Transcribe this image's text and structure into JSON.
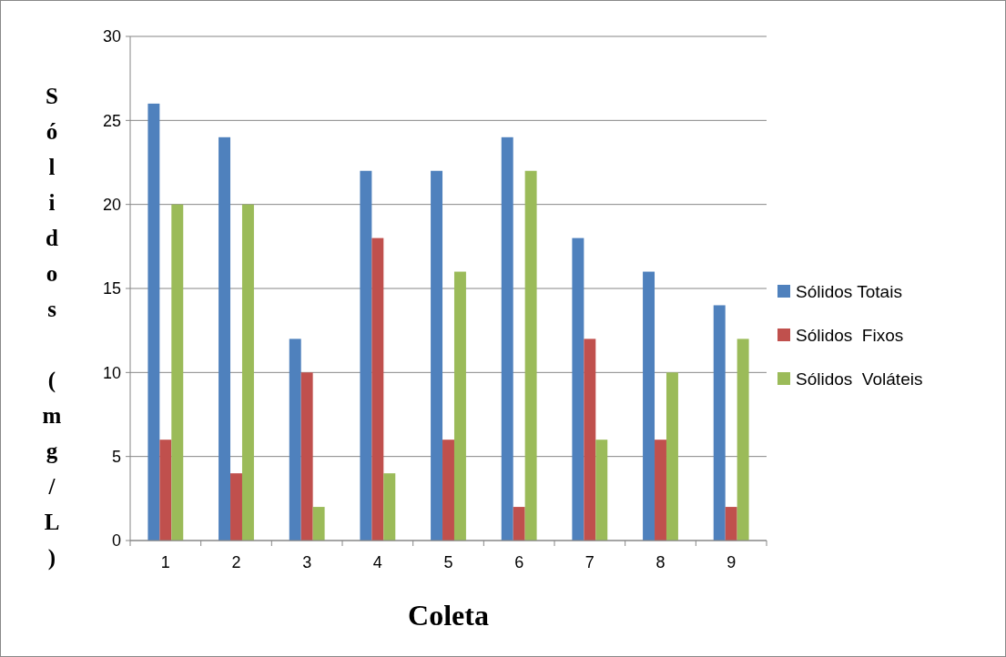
{
  "chart_data": {
    "type": "bar",
    "xlabel": "Coleta",
    "ylabel": "Sólidos (mg/L)",
    "categories": [
      "1",
      "2",
      "3",
      "4",
      "5",
      "6",
      "7",
      "8",
      "9"
    ],
    "series": [
      {
        "name": "Sólidos Totais",
        "color": "#4f81bd",
        "values": [
          26,
          24,
          12,
          22,
          22,
          24,
          18,
          16,
          14
        ]
      },
      {
        "name": "Sólidos  Fixos",
        "color": "#c0504d",
        "values": [
          6,
          4,
          10,
          18,
          6,
          2,
          12,
          6,
          2
        ]
      },
      {
        "name": "Sólidos  Voláteis",
        "color": "#9bbb59",
        "values": [
          20,
          20,
          2,
          4,
          16,
          22,
          6,
          10,
          12
        ]
      }
    ],
    "ylim": [
      0,
      30
    ],
    "yticks": [
      0,
      5,
      10,
      15,
      20,
      25,
      30
    ],
    "grid": "y",
    "legend": "right"
  }
}
